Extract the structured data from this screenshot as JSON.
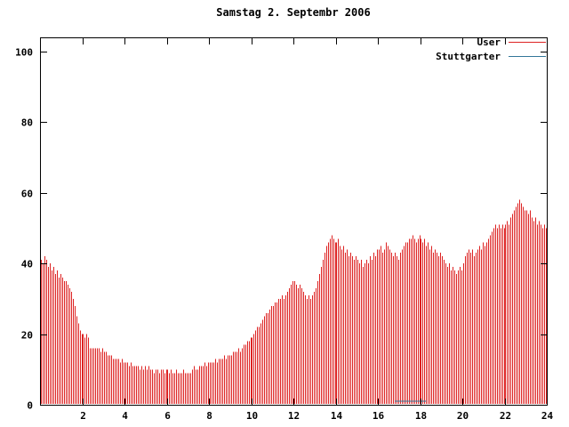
{
  "title": "Samstag 2. Septembr 2006",
  "chart_data": {
    "type": "bar",
    "title": "Samstag 2. Septembr 2006",
    "xlabel": "",
    "ylabel": "",
    "xlim": [
      0,
      24
    ],
    "ylim": [
      0,
      104
    ],
    "xticks": [
      2,
      4,
      6,
      8,
      10,
      12,
      14,
      16,
      18,
      20,
      22,
      24
    ],
    "yticks": [
      0,
      20,
      40,
      60,
      80,
      100
    ],
    "grid": false,
    "legend_position": "top-right-inside",
    "x_unit": "hour-of-day",
    "sample_interval_minutes": 5,
    "series": [
      {
        "name": "User",
        "color": "#dd2222",
        "style": "impulses",
        "values": [
          41,
          40,
          42,
          41,
          39,
          40,
          38,
          39,
          37,
          38,
          36,
          37,
          36,
          35,
          35,
          34,
          33,
          32,
          30,
          28,
          25,
          23,
          21,
          20,
          20,
          19,
          20,
          19,
          16,
          16,
          16,
          16,
          16,
          16,
          15,
          16,
          15,
          15,
          14,
          14,
          14,
          13,
          13,
          13,
          13,
          12,
          13,
          12,
          12,
          12,
          11,
          12,
          11,
          11,
          11,
          11,
          10,
          11,
          10,
          11,
          10,
          11,
          10,
          10,
          9,
          10,
          10,
          9,
          10,
          10,
          9,
          10,
          10,
          9,
          10,
          9,
          9,
          10,
          9,
          9,
          9,
          10,
          9,
          9,
          9,
          9,
          10,
          11,
          10,
          10,
          11,
          11,
          11,
          12,
          11,
          12,
          12,
          12,
          12,
          13,
          12,
          13,
          13,
          13,
          14,
          13,
          14,
          14,
          14,
          15,
          15,
          15,
          16,
          15,
          16,
          17,
          17,
          18,
          18,
          19,
          19,
          20,
          21,
          22,
          22,
          23,
          24,
          25,
          26,
          26,
          27,
          28,
          28,
          29,
          29,
          30,
          30,
          31,
          30,
          31,
          32,
          33,
          34,
          35,
          35,
          34,
          33,
          34,
          33,
          32,
          31,
          30,
          31,
          30,
          31,
          32,
          33,
          35,
          37,
          39,
          41,
          43,
          45,
          46,
          47,
          48,
          47,
          46,
          46,
          47,
          45,
          44,
          45,
          43,
          44,
          42,
          43,
          42,
          41,
          42,
          41,
          40,
          41,
          39,
          40,
          41,
          40,
          42,
          41,
          43,
          42,
          44,
          44,
          45,
          43,
          44,
          46,
          45,
          44,
          43,
          42,
          43,
          42,
          41,
          43,
          44,
          45,
          46,
          46,
          47,
          47,
          48,
          47,
          46,
          47,
          48,
          47,
          46,
          47,
          45,
          46,
          44,
          45,
          43,
          44,
          43,
          42,
          43,
          42,
          41,
          40,
          39,
          40,
          38,
          39,
          38,
          37,
          38,
          39,
          38,
          40,
          42,
          43,
          44,
          43,
          44,
          42,
          43,
          44,
          45,
          44,
          46,
          45,
          46,
          47,
          48,
          49,
          50,
          51,
          50,
          51,
          50,
          51,
          50,
          51,
          52,
          51,
          53,
          54,
          55,
          56,
          57,
          58,
          57,
          56,
          55,
          55,
          54,
          55,
          53,
          52,
          53,
          51,
          52,
          51,
          50,
          51,
          50
        ]
      },
      {
        "name": "Stuttgarter",
        "color": "#337799",
        "style": "line",
        "segments": [
          {
            "x_from": 16.8,
            "x_to": 18.3,
            "value": 1
          }
        ]
      }
    ]
  },
  "axes": {
    "border_color": "#000000",
    "tick_label_color": "#000000"
  }
}
